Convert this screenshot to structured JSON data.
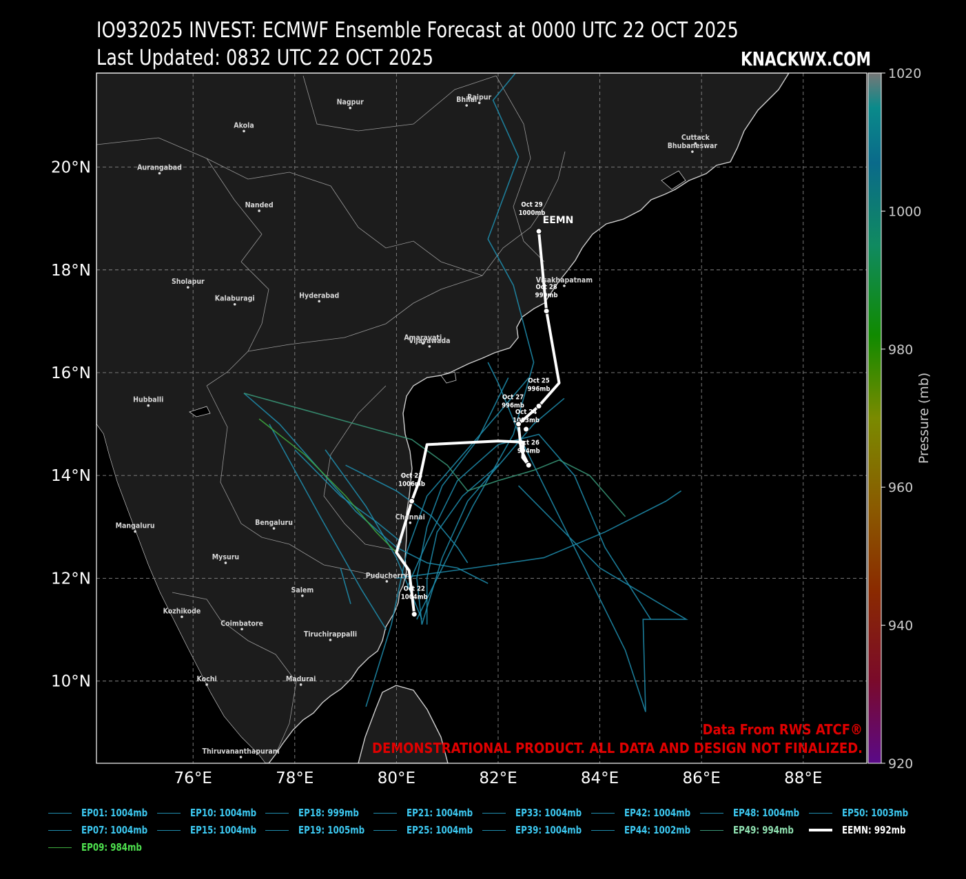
{
  "header": {
    "title": "IO932025 INVEST: ECMWF Ensemble Forecast at 0000 UTC 22 OCT 2025",
    "subtitle": "Last Updated: 0832 UTC 22 OCT 2025",
    "brand": "KNACKWX.COM"
  },
  "credits": {
    "source": "Data From RWS ATCF®",
    "disclaimer": "DEMONSTRATIONAL PRODUCT. ALL DATA AND DESIGN NOT FINALIZED."
  },
  "axes": {
    "lon_labels": [
      "76°E",
      "78°E",
      "80°E",
      "82°E",
      "84°E",
      "86°E",
      "88°E"
    ],
    "lat_labels": [
      "20°N",
      "18°N",
      "16°N",
      "14°N",
      "12°N",
      "10°N"
    ]
  },
  "colorbar": {
    "label": "Pressure (mb)",
    "ticks": [
      "1020",
      "1000",
      "980",
      "960",
      "940",
      "920"
    ]
  },
  "cities": [
    {
      "name": "Nagpur",
      "lon": 79.09,
      "lat": 21.15
    },
    {
      "name": "Bhilai",
      "lon": 81.38,
      "lat": 21.2
    },
    {
      "name": "Raipur",
      "lon": 81.63,
      "lat": 21.25
    },
    {
      "name": "Akola",
      "lon": 77.0,
      "lat": 20.7
    },
    {
      "name": "Cuttack",
      "lon": 85.88,
      "lat": 20.46
    },
    {
      "name": "Bhubaneswar",
      "lon": 85.82,
      "lat": 20.3
    },
    {
      "name": "Aurangabad",
      "lon": 75.34,
      "lat": 19.88
    },
    {
      "name": "Nanded",
      "lon": 77.3,
      "lat": 19.15
    },
    {
      "name": "Visakhapatnam",
      "lon": 83.3,
      "lat": 17.69
    },
    {
      "name": "Sholapur",
      "lon": 75.9,
      "lat": 17.66
    },
    {
      "name": "Kalaburagi",
      "lon": 76.82,
      "lat": 17.33
    },
    {
      "name": "Hyderabad",
      "lon": 78.48,
      "lat": 17.39
    },
    {
      "name": "Amaravati",
      "lon": 80.52,
      "lat": 16.57
    },
    {
      "name": "Vijayawada",
      "lon": 80.65,
      "lat": 16.51
    },
    {
      "name": "Hubballi",
      "lon": 75.12,
      "lat": 15.36
    },
    {
      "name": "Chennai",
      "lon": 80.27,
      "lat": 13.08
    },
    {
      "name": "Bengaluru",
      "lon": 77.59,
      "lat": 12.97
    },
    {
      "name": "Mangaluru",
      "lon": 74.86,
      "lat": 12.91
    },
    {
      "name": "Mysuru",
      "lon": 76.64,
      "lat": 12.3
    },
    {
      "name": "Puducherry",
      "lon": 79.81,
      "lat": 11.94
    },
    {
      "name": "Salem",
      "lon": 78.15,
      "lat": 11.66
    },
    {
      "name": "Kozhikode",
      "lon": 75.78,
      "lat": 11.25
    },
    {
      "name": "Coimbatore",
      "lon": 76.96,
      "lat": 11.01
    },
    {
      "name": "Tiruchirappalli",
      "lon": 78.7,
      "lat": 10.8
    },
    {
      "name": "Kochi",
      "lon": 76.27,
      "lat": 9.93
    },
    {
      "name": "Madurai",
      "lon": 78.12,
      "lat": 9.93
    },
    {
      "name": "Thiruvananthapuram",
      "lon": 76.94,
      "lat": 8.52
    }
  ],
  "eemn": {
    "label": "EEMN",
    "track": [
      [
        80.35,
        11.3
      ],
      [
        80.25,
        12.15
      ],
      [
        80.0,
        12.5
      ],
      [
        80.3,
        13.5
      ],
      [
        80.45,
        13.9
      ],
      [
        80.6,
        14.6
      ],
      [
        82.0,
        14.67
      ],
      [
        82.5,
        14.65
      ],
      [
        82.48,
        14.35
      ],
      [
        82.6,
        14.2
      ],
      [
        82.45,
        14.5
      ],
      [
        82.4,
        15.0
      ],
      [
        82.8,
        15.35
      ],
      [
        83.2,
        15.8
      ],
      [
        82.95,
        17.2
      ],
      [
        82.8,
        18.75
      ]
    ],
    "points": [
      {
        "label": "Oct 22",
        "pressure": "1004mb",
        "lon": 80.35,
        "lat": 11.3
      },
      {
        "label": "Oct 23",
        "pressure": "1006mb",
        "lon": 80.3,
        "lat": 13.5
      },
      {
        "label": "Oct 24",
        "pressure": "1003mb",
        "lon": 82.55,
        "lat": 14.9
      },
      {
        "label": "Oct 25",
        "pressure": "996mb",
        "lon": 82.8,
        "lat": 15.35
      },
      {
        "label": "Oct 26",
        "pressure": "994mb",
        "lon": 82.6,
        "lat": 14.2
      },
      {
        "label": "Oct 27",
        "pressure": "996mb",
        "lon": 82.4,
        "lat": 15.0
      },
      {
        "label": "Oct 28",
        "pressure": "999mb",
        "lon": 82.95,
        "lat": 17.2
      },
      {
        "label": "Oct 29",
        "pressure": "1000mb",
        "lon": 82.8,
        "lat": 18.75
      }
    ]
  },
  "members": [
    {
      "name": "EP01: 1004mb",
      "color": "#1f8fb0",
      "track": [
        [
          79.4,
          9.5
        ],
        [
          79.9,
          11.1
        ],
        [
          80.2,
          12.5
        ],
        [
          80.6,
          13.6
        ],
        [
          81.3,
          14.4
        ],
        [
          82.0,
          15.2
        ],
        [
          82.6,
          15.9
        ]
      ]
    },
    {
      "name": "EP07: 1004mb",
      "color": "#1f8fb0",
      "track": [
        [
          80.4,
          11.2
        ],
        [
          80.9,
          12.2
        ],
        [
          81.5,
          13.4
        ],
        [
          82.3,
          14.8
        ],
        [
          82.7,
          16.2
        ],
        [
          82.3,
          17.7
        ],
        [
          81.8,
          18.6
        ],
        [
          82.4,
          20.2
        ],
        [
          81.9,
          21.3
        ],
        [
          82.4,
          21.9
        ]
      ]
    },
    {
      "name": "EP10: 1004mb",
      "color": "#1f8fb0",
      "track": [
        [
          80.5,
          11.1
        ],
        [
          80.4,
          12.0
        ],
        [
          80.6,
          13.0
        ],
        [
          80.9,
          13.8
        ],
        [
          81.6,
          14.7
        ],
        [
          82.2,
          15.9
        ]
      ]
    },
    {
      "name": "EP15: 1004mb",
      "color": "#1f8fb0",
      "track": [
        [
          77.5,
          15.0
        ],
        [
          78.5,
          13.2
        ],
        [
          79.3,
          11.8
        ],
        [
          79.8,
          11.0
        ]
      ]
    },
    {
      "name": "EP18: 999mb",
      "color": "#1f8fb0",
      "track": [
        [
          81.8,
          16.2
        ],
        [
          82.0,
          15.8
        ],
        [
          82.5,
          14.6
        ],
        [
          83.0,
          13.6
        ],
        [
          83.7,
          12.2
        ],
        [
          84.5,
          10.6
        ],
        [
          84.9,
          9.4
        ],
        [
          84.85,
          11.2
        ],
        [
          85.7,
          11.2
        ],
        [
          84.0,
          12.2
        ],
        [
          82.4,
          13.8
        ]
      ]
    },
    {
      "name": "EP19: 1005mb",
      "color": "#1f8fb0",
      "track": [
        [
          78.9,
          12.2
        ],
        [
          79.1,
          11.5
        ]
      ]
    },
    {
      "name": "EP21: 1004mb",
      "color": "#1f8fb0",
      "track": [
        [
          77.0,
          15.6
        ],
        [
          77.7,
          15.0
        ],
        [
          78.5,
          14.1
        ],
        [
          79.2,
          13.3
        ],
        [
          80.0,
          12.6
        ],
        [
          80.6,
          12.3
        ],
        [
          81.2,
          12.2
        ],
        [
          81.8,
          11.9
        ]
      ]
    },
    {
      "name": "EP25: 1004mb",
      "color": "#1f8fb0",
      "track": [
        [
          80.2,
          11.8
        ],
        [
          80.6,
          12.7
        ],
        [
          81.2,
          13.9
        ],
        [
          82.0,
          14.6
        ],
        [
          82.8,
          14.8
        ],
        [
          83.5,
          14.0
        ],
        [
          84.1,
          12.6
        ],
        [
          85.0,
          11.2
        ]
      ]
    },
    {
      "name": "EP33: 1004mb",
      "color": "#1f8fb0",
      "track": [
        [
          80.5,
          11.1
        ],
        [
          80.9,
          12.4
        ],
        [
          81.4,
          13.5
        ],
        [
          82.1,
          14.3
        ],
        [
          82.7,
          15.0
        ],
        [
          83.3,
          15.5
        ]
      ]
    },
    {
      "name": "EP39: 1004mb",
      "color": "#1f8fb0",
      "track": [
        [
          80.6,
          11.1
        ],
        [
          80.6,
          12.0
        ],
        [
          80.8,
          12.9
        ],
        [
          81.3,
          13.6
        ],
        [
          82.0,
          14.2
        ]
      ]
    },
    {
      "name": "EP42: 1004mb",
      "color": "#1f8fb0",
      "track": [
        [
          78.0,
          14.5
        ],
        [
          78.9,
          13.6
        ],
        [
          79.6,
          13.1
        ],
        [
          80.1,
          12.7
        ]
      ]
    },
    {
      "name": "EP44: 1002mb",
      "color": "#1f8fb0",
      "track": [
        [
          80.0,
          12.0
        ],
        [
          81.5,
          12.2
        ],
        [
          82.9,
          12.4
        ],
        [
          84.1,
          12.9
        ],
        [
          85.3,
          13.5
        ],
        [
          85.6,
          13.7
        ]
      ]
    },
    {
      "name": "EP48: 1004mb",
      "color": "#1f8fb0",
      "track": [
        [
          78.6,
          14.5
        ],
        [
          79.4,
          13.4
        ],
        [
          80.0,
          12.4
        ],
        [
          80.5,
          11.2
        ]
      ]
    },
    {
      "name": "EP49: 994mb",
      "color": "#3a9a7a",
      "track": [
        [
          77.0,
          15.6
        ],
        [
          78.1,
          15.3
        ],
        [
          79.2,
          15.0
        ],
        [
          80.3,
          14.7
        ],
        [
          81.0,
          14.2
        ],
        [
          81.4,
          13.7
        ],
        [
          82.0,
          13.9
        ],
        [
          82.7,
          14.1
        ],
        [
          83.2,
          14.3
        ],
        [
          83.8,
          14.0
        ],
        [
          84.5,
          13.2
        ]
      ]
    },
    {
      "name": "EP50: 1003mb",
      "color": "#1f8fb0",
      "track": [
        [
          79.0,
          14.2
        ],
        [
          80.0,
          13.7
        ],
        [
          80.7,
          13.2
        ],
        [
          81.2,
          12.6
        ],
        [
          81.4,
          12.3
        ]
      ]
    },
    {
      "name": "EEMN: 992mb",
      "color": "#ffffff",
      "track": []
    },
    {
      "name": "EP09: 984mb",
      "color": "#3fae3f",
      "track": [
        [
          77.3,
          15.1
        ],
        [
          78.2,
          14.4
        ],
        [
          79.0,
          13.6
        ],
        [
          79.6,
          12.9
        ],
        [
          80.0,
          12.5
        ]
      ]
    }
  ]
}
